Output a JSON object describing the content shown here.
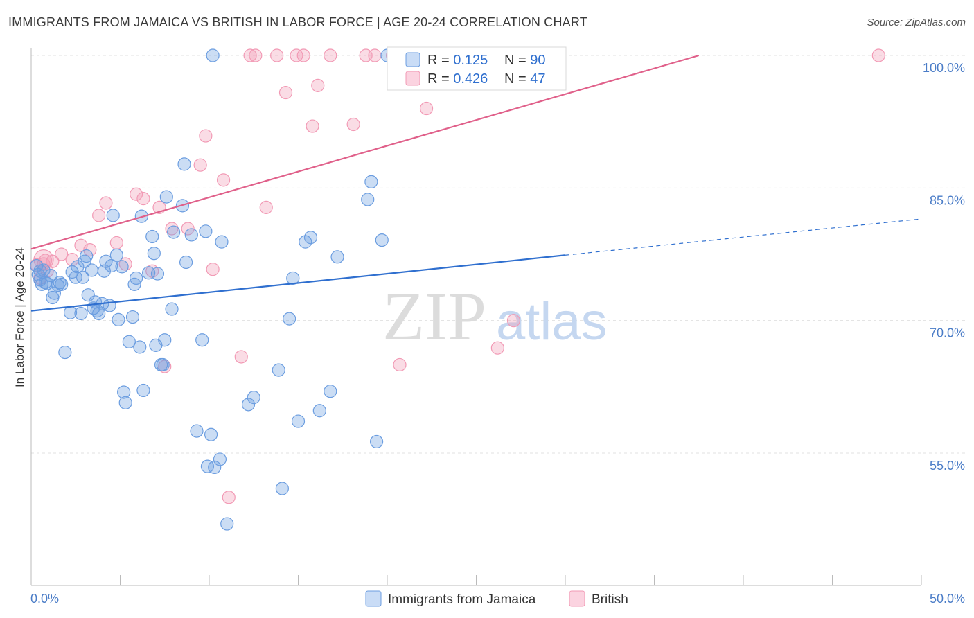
{
  "title": "IMMIGRANTS FROM JAMAICA VS BRITISH IN LABOR FORCE | AGE 20-24 CORRELATION CHART",
  "source": "Source: ZipAtlas.com",
  "colors": {
    "blue": "#6b9de0",
    "blue_line": "#2f6fcf",
    "pink": "#f29ab5",
    "pink_line": "#e0608a",
    "tick_text": "#4a7cc7",
    "grid": "#e0e0e0"
  },
  "legend": {
    "rows": [
      {
        "r_label": "R = ",
        "r_value": "0.125",
        "n_label": "N = ",
        "n_value": "90"
      },
      {
        "r_label": "R = ",
        "r_value": "0.426",
        "n_label": "N = ",
        "n_value": "47"
      }
    ]
  },
  "bottom_legend": [
    "Immigrants from Jamaica",
    "British"
  ],
  "watermark": {
    "zip": "ZIP",
    "atlas": "atlas"
  },
  "chart_data": {
    "type": "scatter",
    "xlabel": "",
    "ylabel": "In Labor Force | Age 20-24",
    "xlim": [
      0,
      50
    ],
    "ylim": [
      40,
      100
    ],
    "x_tick_labels": [
      "0.0%",
      "50.0%"
    ],
    "y_ticks": [
      55,
      70,
      85,
      100
    ],
    "y_tick_labels": [
      "55.0%",
      "70.0%",
      "85.0%",
      "100.0%"
    ],
    "grid": true,
    "legend_position": "top-center",
    "series": [
      {
        "name": "Immigrants from Jamaica",
        "r": 0.125,
        "n": 90,
        "trend": {
          "x": [
            0,
            30,
            50
          ],
          "y": [
            71.1,
            77.4,
            81.5
          ],
          "solid_until": 30
        },
        "points": [
          [
            0.3,
            76.2
          ],
          [
            0.4,
            75.2
          ],
          [
            0.5,
            74.6
          ],
          [
            0.6,
            74.1
          ],
          [
            0.7,
            75.7
          ],
          [
            0.8,
            74.3
          ],
          [
            0.9,
            74.2
          ],
          [
            1.1,
            75.1
          ],
          [
            1.2,
            72.6
          ],
          [
            1.3,
            73.1
          ],
          [
            1.5,
            74.0
          ],
          [
            1.6,
            74.3
          ],
          [
            1.7,
            74.1
          ],
          [
            1.9,
            66.4
          ],
          [
            2.2,
            70.9
          ],
          [
            2.3,
            75.5
          ],
          [
            2.5,
            74.9
          ],
          [
            2.6,
            76.1
          ],
          [
            2.8,
            70.8
          ],
          [
            2.9,
            74.9
          ],
          [
            3.0,
            76.7
          ],
          [
            3.1,
            77.3
          ],
          [
            3.2,
            72.9
          ],
          [
            3.4,
            75.7
          ],
          [
            3.5,
            71.4
          ],
          [
            3.6,
            72.1
          ],
          [
            3.7,
            71.1
          ],
          [
            3.8,
            70.8
          ],
          [
            4.0,
            71.9
          ],
          [
            4.1,
            75.6
          ],
          [
            4.2,
            76.7
          ],
          [
            4.4,
            71.7
          ],
          [
            4.5,
            76.2
          ],
          [
            4.6,
            81.9
          ],
          [
            4.8,
            77.4
          ],
          [
            4.9,
            70.1
          ],
          [
            5.1,
            76.1
          ],
          [
            5.2,
            61.9
          ],
          [
            5.3,
            60.7
          ],
          [
            5.5,
            67.6
          ],
          [
            5.7,
            70.4
          ],
          [
            5.8,
            74.1
          ],
          [
            5.9,
            74.8
          ],
          [
            6.1,
            67.0
          ],
          [
            6.2,
            81.8
          ],
          [
            6.3,
            62.1
          ],
          [
            6.6,
            75.4
          ],
          [
            6.8,
            79.5
          ],
          [
            6.9,
            77.6
          ],
          [
            7.0,
            67.2
          ],
          [
            7.1,
            75.3
          ],
          [
            7.3,
            65.0
          ],
          [
            7.4,
            65.0
          ],
          [
            7.5,
            67.8
          ],
          [
            7.6,
            84.0
          ],
          [
            7.9,
            71.3
          ],
          [
            8.0,
            80.0
          ],
          [
            8.5,
            83.0
          ],
          [
            8.6,
            87.7
          ],
          [
            8.7,
            76.6
          ],
          [
            9.0,
            79.7
          ],
          [
            9.3,
            57.5
          ],
          [
            9.6,
            67.8
          ],
          [
            9.8,
            80.1
          ],
          [
            9.9,
            53.5
          ],
          [
            10.1,
            57.1
          ],
          [
            10.2,
            100.0
          ],
          [
            10.3,
            53.4
          ],
          [
            10.6,
            54.3
          ],
          [
            10.7,
            78.9
          ],
          [
            11.0,
            47.0
          ],
          [
            12.2,
            60.5
          ],
          [
            12.5,
            61.3
          ],
          [
            13.9,
            64.4
          ],
          [
            14.1,
            51.0
          ],
          [
            14.5,
            70.2
          ],
          [
            14.7,
            74.8
          ],
          [
            15.0,
            58.6
          ],
          [
            15.4,
            78.9
          ],
          [
            15.7,
            79.4
          ],
          [
            16.2,
            59.8
          ],
          [
            16.8,
            62.0
          ],
          [
            17.2,
            77.2
          ],
          [
            18.9,
            83.7
          ],
          [
            19.1,
            85.7
          ],
          [
            19.4,
            56.3
          ],
          [
            19.7,
            79.1
          ],
          [
            20.0,
            100.0
          ],
          [
            24.5,
            100.0
          ],
          [
            0.5,
            75.6
          ]
        ]
      },
      {
        "name": "British",
        "r": 0.426,
        "n": 47,
        "trend": {
          "x": [
            0,
            37.5
          ],
          "y": [
            78.1,
            100.0
          ]
        },
        "points": [
          [
            0.3,
            76.3
          ],
          [
            0.5,
            74.8
          ],
          [
            0.7,
            76.4
          ],
          [
            0.8,
            76.8
          ],
          [
            0.9,
            75.6
          ],
          [
            1.2,
            76.7
          ],
          [
            1.7,
            77.5
          ],
          [
            2.3,
            76.9
          ],
          [
            2.8,
            78.5
          ],
          [
            3.3,
            78.0
          ],
          [
            3.8,
            81.9
          ],
          [
            4.2,
            83.3
          ],
          [
            4.8,
            78.8
          ],
          [
            5.3,
            76.4
          ],
          [
            5.9,
            84.3
          ],
          [
            6.3,
            83.8
          ],
          [
            6.8,
            75.6
          ],
          [
            7.2,
            82.8
          ],
          [
            7.5,
            64.8
          ],
          [
            7.9,
            80.4
          ],
          [
            8.8,
            80.4
          ],
          [
            9.5,
            87.6
          ],
          [
            9.8,
            90.9
          ],
          [
            10.2,
            75.8
          ],
          [
            10.8,
            85.9
          ],
          [
            11.1,
            50.0
          ],
          [
            11.8,
            65.9
          ],
          [
            12.3,
            100.0
          ],
          [
            12.6,
            100.0
          ],
          [
            13.2,
            82.8
          ],
          [
            13.8,
            100.0
          ],
          [
            14.3,
            95.8
          ],
          [
            14.9,
            100.0
          ],
          [
            15.3,
            100.0
          ],
          [
            15.8,
            92.0
          ],
          [
            16.1,
            96.6
          ],
          [
            16.8,
            100.0
          ],
          [
            18.1,
            92.2
          ],
          [
            18.8,
            100.0
          ],
          [
            19.3,
            100.0
          ],
          [
            20.3,
            100.0
          ],
          [
            20.7,
            65.0
          ],
          [
            22.2,
            94.0
          ],
          [
            26.2,
            66.9
          ],
          [
            27.1,
            70.0
          ],
          [
            28.1,
            100.0
          ],
          [
            47.6,
            100.0
          ]
        ]
      }
    ]
  }
}
